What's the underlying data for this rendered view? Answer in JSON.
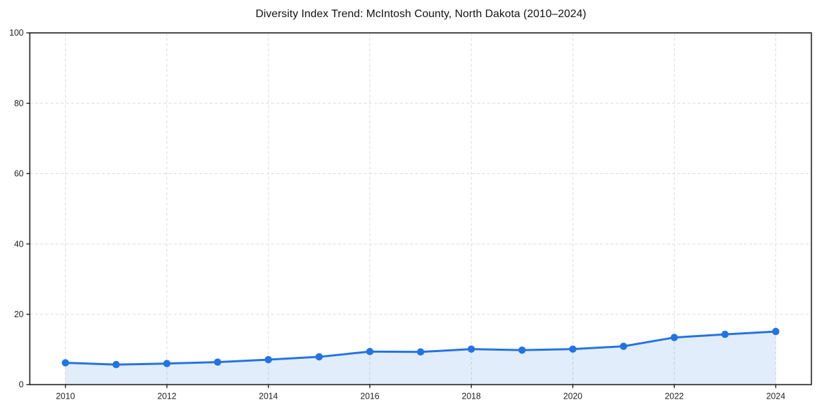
{
  "chart_data": {
    "type": "area",
    "title": "Diversity Index Trend: McIntosh County, North Dakota (2010–2024)",
    "series_name": "Diversity Index",
    "x": [
      2010,
      2011,
      2012,
      2013,
      2014,
      2015,
      2016,
      2017,
      2018,
      2019,
      2020,
      2021,
      2022,
      2023,
      2024
    ],
    "values": [
      6.2,
      5.7,
      6.0,
      6.4,
      7.1,
      7.9,
      9.4,
      9.3,
      10.1,
      9.8,
      10.1,
      10.9,
      13.4,
      14.3,
      15.1
    ],
    "xlabel": "",
    "ylabel": "",
    "xlim": [
      2010,
      2024
    ],
    "ylim": [
      0,
      100
    ],
    "xticks": [
      2010,
      2012,
      2014,
      2016,
      2018,
      2020,
      2022,
      2024
    ],
    "yticks": [
      0,
      20,
      40,
      60,
      80,
      100
    ],
    "grid": true,
    "grid_style": "dashed",
    "legend": "none",
    "line_color": "#2273e3",
    "fill_color": "#2273e3",
    "fill_opacity": 0.13,
    "grid_color": "#dcdcdc",
    "axis_color": "#1a1a1a",
    "tick_label_color": "#222222",
    "marker": "circle"
  }
}
